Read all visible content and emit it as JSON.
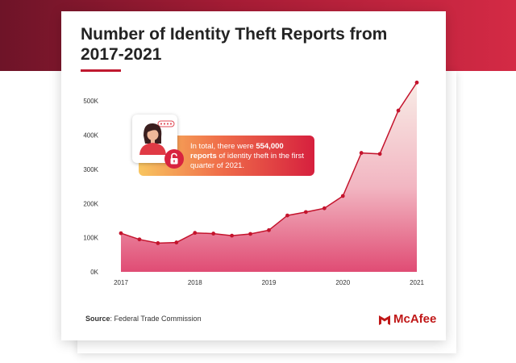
{
  "chart_data": {
    "type": "area",
    "title": "Number of Identity Theft Reports from 2017-2021",
    "xlabel": "",
    "ylabel": "",
    "ylim": [
      0,
      550000
    ],
    "y_ticks": [
      "0K",
      "100K",
      "200K",
      "300K",
      "400K",
      "500K"
    ],
    "y_tick_values": [
      0,
      100000,
      200000,
      300000,
      400000,
      500000
    ],
    "x_ticks": [
      "2017",
      "2018",
      "2019",
      "2020",
      "2021"
    ],
    "x_tick_values": [
      2017,
      2018,
      2019,
      2020,
      2021
    ],
    "grid": false,
    "series": [
      {
        "x": [
          2017,
          2017.25,
          2017.5,
          2017.75,
          2018,
          2018.25,
          2018.5,
          2018.75,
          2019,
          2019.25,
          2019.5,
          2019.75,
          2020,
          2020.25,
          2020.5,
          2020.75,
          2021
        ],
        "values": [
          113000,
          95000,
          84000,
          86000,
          114000,
          112000,
          106000,
          111000,
          122000,
          165000,
          175000,
          186000,
          222000,
          348000,
          345000,
          472000,
          554000
        ]
      }
    ],
    "colors": {
      "line": "#c4142d",
      "fill_top": "#f5e4dc",
      "fill_bottom": "#e05078"
    }
  },
  "callout": {
    "text_prefix": "In total, there were ",
    "text_highlight": "554,000 reports",
    "text_suffix": " of identity theft in the first quarter of 2021."
  },
  "source": {
    "label": "Source",
    "text": "Federal Trade Commission"
  },
  "brand": {
    "name": "McAfee",
    "color": "#c01818"
  }
}
